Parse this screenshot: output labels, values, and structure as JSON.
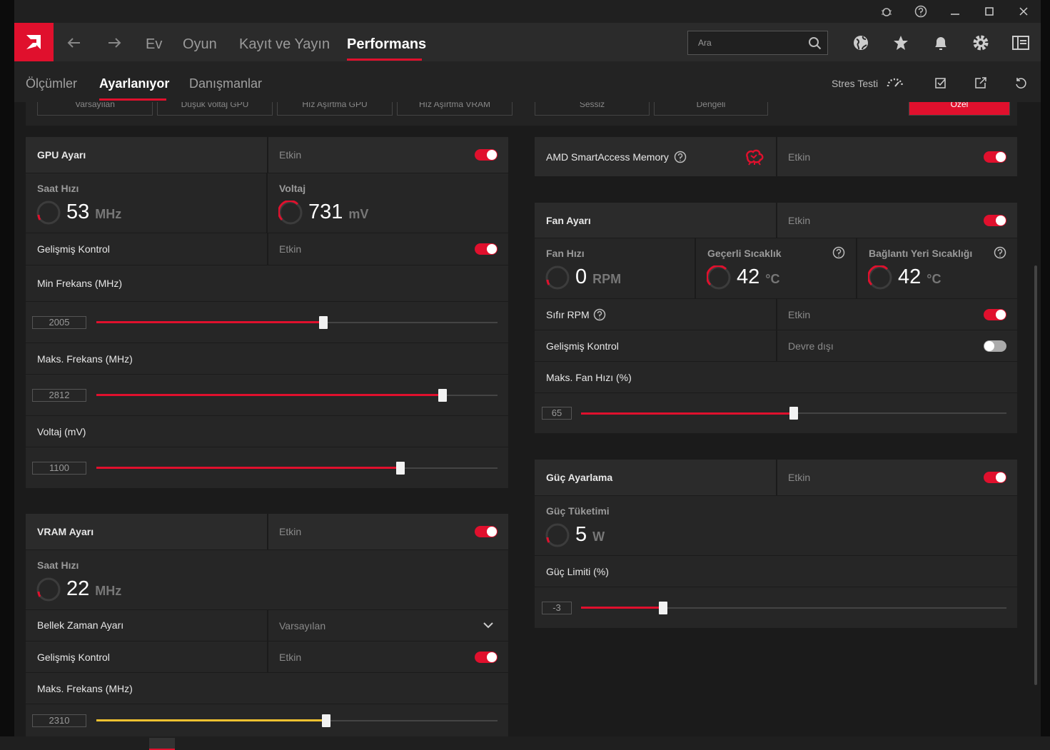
{
  "window": {
    "nav": [
      "Ev",
      "Oyun",
      "Kayıt ve Yayın",
      "Performans"
    ],
    "search_placeholder": "Ara"
  },
  "subnav": {
    "tabs": [
      "Ölçümler",
      "Ayarlanıyor",
      "Danışmanlar"
    ],
    "stress_test": "Stres Testi"
  },
  "presets": [
    "Varsayılan",
    "Düşük voltaj GPU",
    "Hız Aşırtma GPU",
    "Hız Aşırtma VRAM",
    "Sessiz",
    "Dengeli",
    "Özel"
  ],
  "gpu_tuning": {
    "title": "GPU Ayarı",
    "state": "Etkin",
    "enabled": true,
    "metrics": [
      {
        "label": "Saat Hızı",
        "value": 53,
        "unit": "MHz"
      },
      {
        "label": "Voltaj",
        "value": 731,
        "unit": "mV"
      }
    ],
    "advanced_control": {
      "label": "Gelişmiş Kontrol",
      "state": "Etkin",
      "enabled": true
    },
    "sliders": [
      {
        "label": "Min Frekans (MHz)",
        "value": 2005
      },
      {
        "label": "Maks. Frekans (MHz)",
        "value": 2812
      },
      {
        "label": "Voltaj (mV)",
        "value": 1100
      }
    ]
  },
  "vram_tuning": {
    "title": "VRAM Ayarı",
    "state": "Etkin",
    "enabled": true,
    "metrics": [
      {
        "label": "Saat Hızı",
        "value": 22,
        "unit": "MHz"
      }
    ],
    "memory_timing": {
      "label": "Bellek Zaman Ayarı",
      "value": "Varsayılan"
    },
    "advanced_control": {
      "label": "Gelişmiş Kontrol",
      "state": "Etkin",
      "enabled": true
    },
    "sliders": [
      {
        "label": "Maks. Frekans (MHz)",
        "value": 2310
      }
    ]
  },
  "smart_access_memory": {
    "label": "AMD SmartAccess Memory",
    "state": "Etkin",
    "enabled": true
  },
  "fan_tuning": {
    "title": "Fan Ayarı",
    "state": "Etkin",
    "enabled": true,
    "metrics": [
      {
        "label": "Fan Hızı",
        "value": 0,
        "unit": "RPM"
      },
      {
        "label": "Geçerli Sıcaklık",
        "value": 42,
        "unit": "°C"
      },
      {
        "label": "Bağlantı Yeri Sıcaklığı",
        "value": 42,
        "unit": "°C"
      }
    ],
    "zero_rpm": {
      "label": "Sıfır RPM",
      "state": "Etkin",
      "enabled": true
    },
    "advanced_control": {
      "label": "Gelişmiş Kontrol",
      "state": "Devre dışı",
      "enabled": false
    },
    "sliders": [
      {
        "label": "Maks. Fan Hızı (%)",
        "value": 65
      }
    ]
  },
  "power_tuning": {
    "title": "Güç Ayarlama",
    "state": "Etkin",
    "enabled": true,
    "metrics": [
      {
        "label": "Güç Tüketimi",
        "value": 5,
        "unit": "W"
      }
    ],
    "sliders": [
      {
        "label": "Güç Limiti (%)",
        "value": -3
      }
    ]
  }
}
